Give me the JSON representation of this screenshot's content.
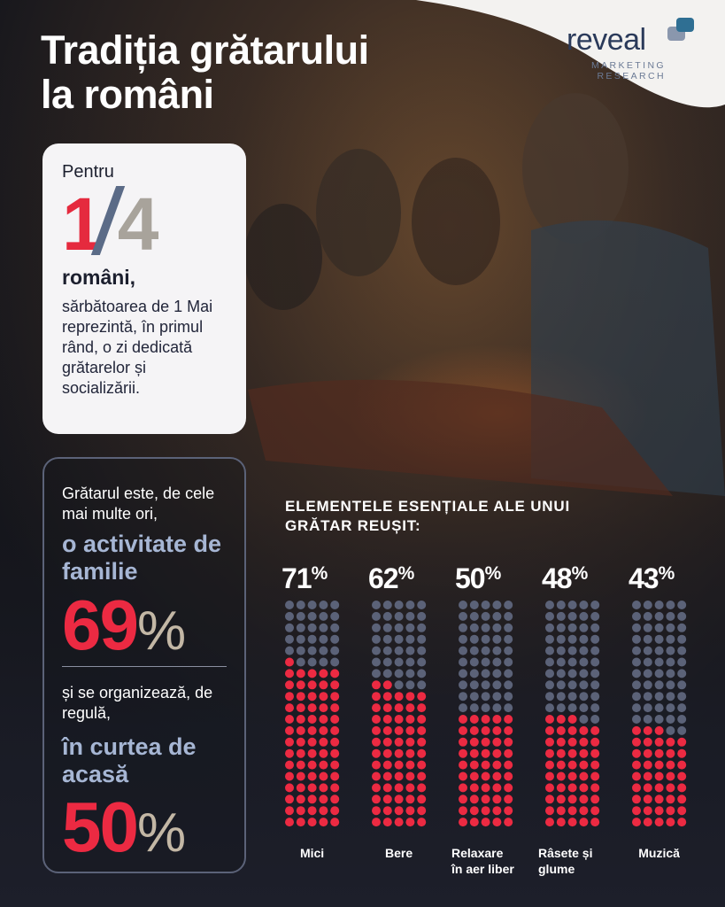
{
  "title_lines": [
    "Tradiția grătarului",
    "la români"
  ],
  "logo": {
    "word": "reveal",
    "sub_line1": "MARKETING",
    "sub_line2": "RESEARCH"
  },
  "card": {
    "intro": "Pentru",
    "fraction_numerator": "1",
    "fraction_denominator": "4",
    "subject": "români,",
    "description": "sărbătoarea de 1 Mai reprezintă, în primul rând, o zi dedicată grătarelor și socializării."
  },
  "panel": {
    "text1": "Grătarul este, de cele mai multe ori,",
    "accent1": "o activitate de familie",
    "value1": "69",
    "text2": "și se organizează, de regulă,",
    "accent2": "în curtea de acasă",
    "value2": "50",
    "percent_sign": "%"
  },
  "section_title_lines": [
    "ELEMENTELE ESENȚIALE ALE UNUI",
    "GRĂTAR REUȘIT:"
  ],
  "colors": {
    "accent_red": "#ec2a42",
    "dot_gray": "#5b6278",
    "accent_blue": "#a6b6d4",
    "beige": "#c3b7a5"
  },
  "chart_data": {
    "type": "dot-matrix",
    "title": "ELEMENTELE ESENȚIALE ALE UNUI GRĂTAR REUȘIT:",
    "categories": [
      "Mici",
      "Bere",
      "Relaxare în aer liber",
      "Râsete și glume",
      "Muzică"
    ],
    "label_lines": [
      [
        "Mici"
      ],
      [
        "Bere"
      ],
      [
        "Relaxare",
        "în aer liber"
      ],
      [
        "Râsete și",
        "glume"
      ],
      [
        "Muzică"
      ]
    ],
    "values": [
      71,
      62,
      50,
      48,
      43
    ],
    "unit": "%",
    "dots_per_column": 100
  }
}
